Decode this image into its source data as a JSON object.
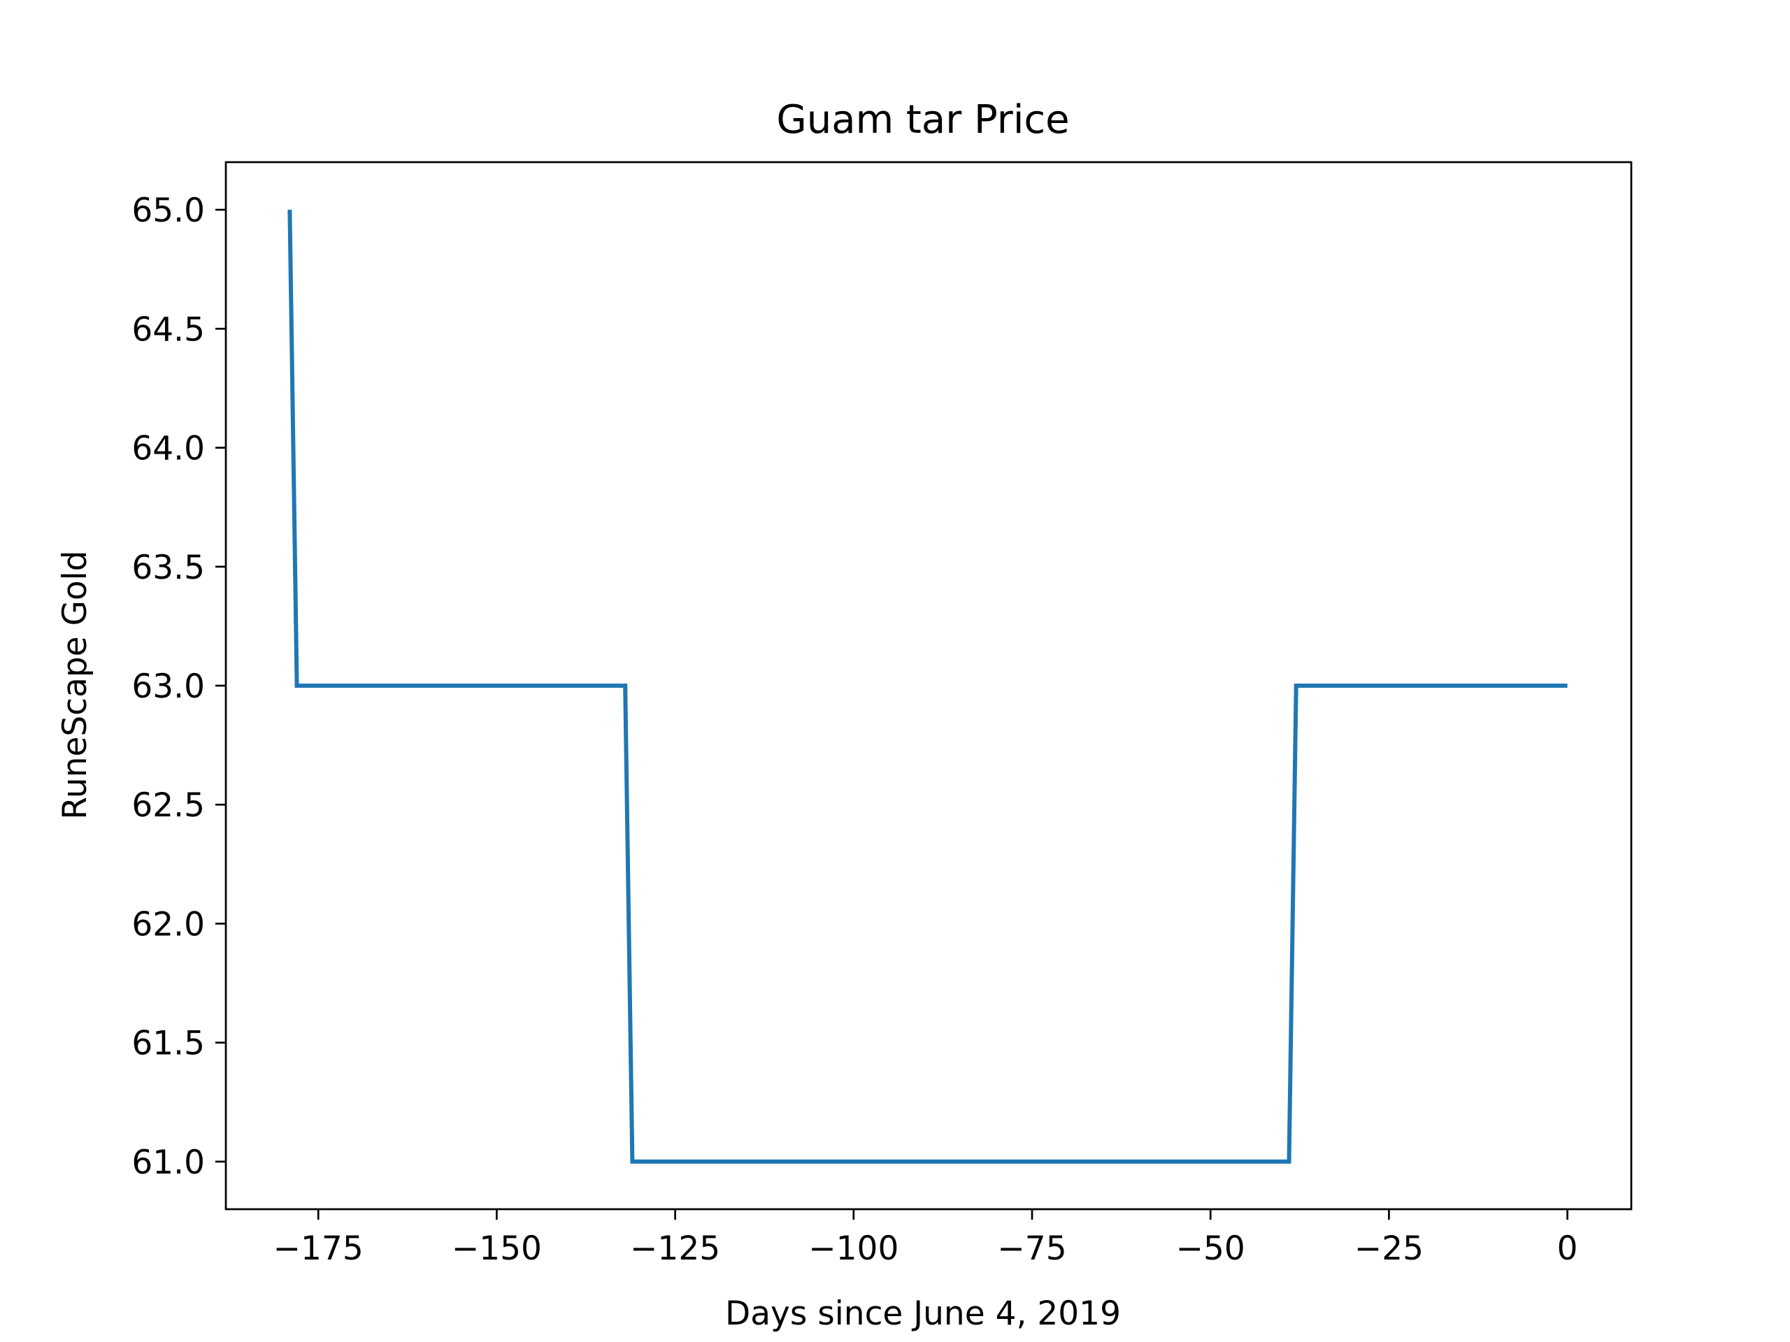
{
  "chart_data": {
    "type": "line",
    "title": "Guam tar Price",
    "xlabel": "Days since June 4, 2019",
    "ylabel": "RuneScape Gold",
    "xlim": [
      -187.95,
      8.95
    ],
    "ylim": [
      60.8,
      65.2
    ],
    "x_ticks": [
      {
        "value": -175,
        "label": "−175"
      },
      {
        "value": -150,
        "label": "−150"
      },
      {
        "value": -125,
        "label": "−125"
      },
      {
        "value": -100,
        "label": "−100"
      },
      {
        "value": -75,
        "label": "−75"
      },
      {
        "value": -50,
        "label": "−50"
      },
      {
        "value": -25,
        "label": "−25"
      },
      {
        "value": 0,
        "label": "0"
      }
    ],
    "y_ticks": [
      {
        "value": 61.0,
        "label": "61.0"
      },
      {
        "value": 61.5,
        "label": "61.5"
      },
      {
        "value": 62.0,
        "label": "62.0"
      },
      {
        "value": 62.5,
        "label": "62.5"
      },
      {
        "value": 63.0,
        "label": "63.0"
      },
      {
        "value": 63.5,
        "label": "63.5"
      },
      {
        "value": 64.0,
        "label": "64.0"
      },
      {
        "value": 64.5,
        "label": "64.5"
      },
      {
        "value": 65.0,
        "label": "65.0"
      }
    ],
    "grid": false,
    "legend": "none",
    "series": [
      {
        "color": "#1f77b4",
        "x": [
          -179,
          -178,
          -132,
          -131,
          -39,
          -38,
          0
        ],
        "y": [
          65,
          63,
          63,
          61,
          61,
          63,
          63
        ]
      }
    ]
  }
}
